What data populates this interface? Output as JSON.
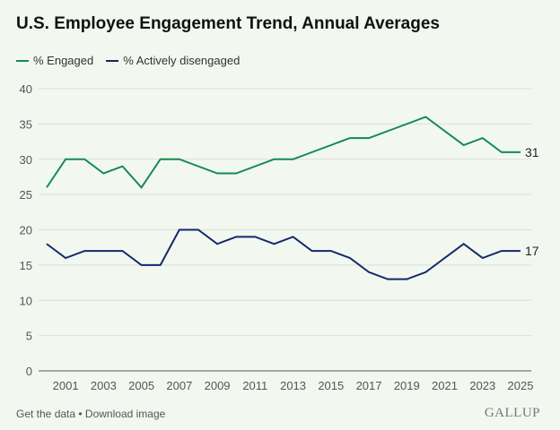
{
  "chart_data": {
    "type": "line",
    "title": "U.S. Employee Engagement Trend, Annual Averages",
    "x": [
      2000,
      2001,
      2002,
      2003,
      2004,
      2005,
      2006,
      2007,
      2008,
      2009,
      2010,
      2011,
      2012,
      2013,
      2014,
      2015,
      2016,
      2017,
      2018,
      2019,
      2020,
      2021,
      2022,
      2023,
      2024,
      2025
    ],
    "x_tick_labels": [
      "2001",
      "2003",
      "2005",
      "2007",
      "2009",
      "2011",
      "2013",
      "2015",
      "2017",
      "2019",
      "2021",
      "2023",
      "2025"
    ],
    "y_tick_labels": [
      "0",
      "5",
      "10",
      "15",
      "20",
      "25",
      "30",
      "35",
      "40"
    ],
    "ylim": [
      0,
      40
    ],
    "grid": true,
    "legend_placement": "top-left",
    "series": [
      {
        "name": "% Engaged",
        "color": "#138a4e",
        "end_label": "31",
        "values": [
          26,
          30,
          30,
          28,
          29,
          26,
          30,
          30,
          29,
          28,
          28,
          29,
          30,
          30,
          31,
          32,
          33,
          33,
          34,
          35,
          36,
          34,
          32,
          33,
          31,
          31
        ]
      },
      {
        "name": "% Actively disengaged",
        "color": "#13286b",
        "end_label": "17",
        "values": [
          18,
          16,
          17,
          17,
          17,
          15,
          15,
          20,
          20,
          18,
          19,
          19,
          18,
          19,
          17,
          17,
          16,
          14,
          13,
          13,
          14,
          16,
          18,
          16,
          17,
          17
        ]
      }
    ]
  },
  "footer": {
    "get_data": "Get the data",
    "separator": " • ",
    "download": "Download image",
    "logo": "GALLUP"
  }
}
